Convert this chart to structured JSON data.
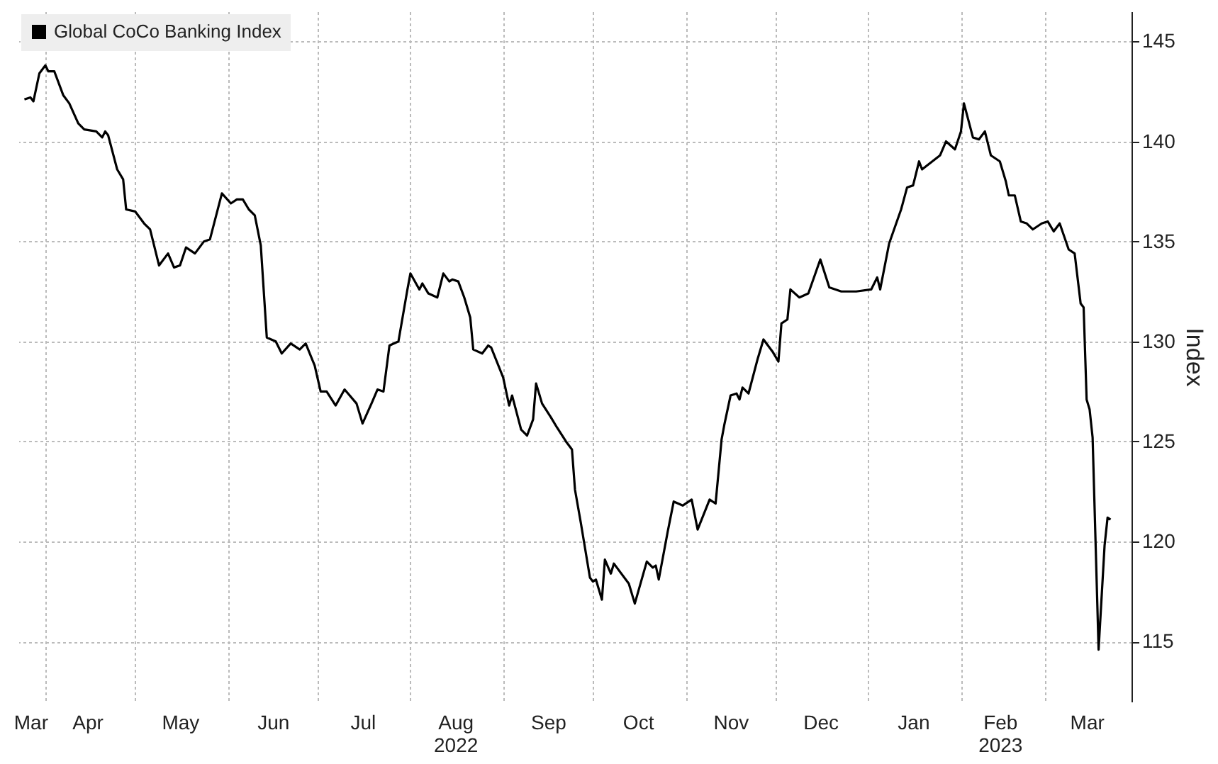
{
  "chart_data": {
    "type": "line",
    "ylabel": "Index",
    "x": [
      "2022-03-25",
      "2022-03-27",
      "2022-03-28",
      "2022-03-30",
      "2022-04-01",
      "2022-04-02",
      "2022-04-04",
      "2022-04-07",
      "2022-04-09",
      "2022-04-12",
      "2022-04-14",
      "2022-04-18",
      "2022-04-20",
      "2022-04-21",
      "2022-04-22",
      "2022-04-25",
      "2022-04-27",
      "2022-04-28",
      "2022-05-01",
      "2022-05-04",
      "2022-05-06",
      "2022-05-09",
      "2022-05-12",
      "2022-05-14",
      "2022-05-16",
      "2022-05-18",
      "2022-05-21",
      "2022-05-24",
      "2022-05-26",
      "2022-05-30",
      "2022-06-02",
      "2022-06-04",
      "2022-06-06",
      "2022-06-08",
      "2022-06-10",
      "2022-06-12",
      "2022-06-14",
      "2022-06-17",
      "2022-06-19",
      "2022-06-22",
      "2022-06-25",
      "2022-06-27",
      "2022-06-30",
      "2022-07-02",
      "2022-07-04",
      "2022-07-07",
      "2022-07-10",
      "2022-07-14",
      "2022-07-16",
      "2022-07-19",
      "2022-07-21",
      "2022-07-23",
      "2022-07-25",
      "2022-07-28",
      "2022-07-31",
      "2022-08-01",
      "2022-08-04",
      "2022-08-05",
      "2022-08-07",
      "2022-08-10",
      "2022-08-12",
      "2022-08-14",
      "2022-08-15",
      "2022-08-17",
      "2022-08-19",
      "2022-08-21",
      "2022-08-22",
      "2022-08-25",
      "2022-08-27",
      "2022-08-28",
      "2022-09-01",
      "2022-09-03",
      "2022-09-04",
      "2022-09-07",
      "2022-09-09",
      "2022-09-11",
      "2022-09-12",
      "2022-09-14",
      "2022-09-17",
      "2022-09-19",
      "2022-09-22",
      "2022-09-24",
      "2022-09-25",
      "2022-09-27",
      "2022-09-30",
      "2022-10-01",
      "2022-10-02",
      "2022-10-04",
      "2022-10-05",
      "2022-10-07",
      "2022-10-08",
      "2022-10-09",
      "2022-10-13",
      "2022-10-15",
      "2022-10-19",
      "2022-10-21",
      "2022-10-22",
      "2022-10-23",
      "2022-10-26",
      "2022-10-28",
      "2022-10-31",
      "2022-11-03",
      "2022-11-05",
      "2022-11-09",
      "2022-11-11",
      "2022-11-13",
      "2022-11-14",
      "2022-11-16",
      "2022-11-18",
      "2022-11-19",
      "2022-11-20",
      "2022-11-22",
      "2022-11-25",
      "2022-11-27",
      "2022-11-30",
      "2022-12-02",
      "2022-12-03",
      "2022-12-05",
      "2022-12-06",
      "2022-12-09",
      "2022-12-12",
      "2022-12-16",
      "2022-12-19",
      "2022-12-23",
      "2022-12-28",
      "2023-01-02",
      "2023-01-04",
      "2023-01-05",
      "2023-01-08",
      "2023-01-12",
      "2023-01-14",
      "2023-01-16",
      "2023-01-18",
      "2023-01-19",
      "2023-01-25",
      "2023-01-27",
      "2023-01-30",
      "2023-02-01",
      "2023-02-02",
      "2023-02-05",
      "2023-02-07",
      "2023-02-09",
      "2023-02-11",
      "2023-02-14",
      "2023-02-16",
      "2023-02-17",
      "2023-02-19",
      "2023-02-21",
      "2023-02-23",
      "2023-02-25",
      "2023-02-28",
      "2023-03-02",
      "2023-03-04",
      "2023-03-06",
      "2023-03-09",
      "2023-03-11",
      "2023-03-13",
      "2023-03-14",
      "2023-03-15",
      "2023-03-16",
      "2023-03-17",
      "2023-03-19",
      "2023-03-21",
      "2023-03-22",
      "2023-03-23"
    ],
    "series": [
      {
        "name": "Global CoCo Banking Index",
        "color": "#000000",
        "values": [
          142.1,
          142.2,
          142.0,
          143.4,
          143.8,
          143.5,
          143.5,
          142.3,
          141.9,
          140.9,
          140.6,
          140.5,
          140.2,
          140.5,
          140.3,
          138.6,
          138.1,
          136.6,
          136.5,
          135.9,
          135.6,
          133.8,
          134.4,
          133.7,
          133.8,
          134.7,
          134.4,
          135.0,
          135.1,
          137.4,
          136.9,
          137.1,
          137.1,
          136.6,
          136.3,
          134.8,
          130.2,
          130.0,
          129.4,
          129.9,
          129.6,
          129.9,
          128.8,
          127.5,
          127.5,
          126.8,
          127.6,
          126.9,
          125.9,
          126.9,
          127.6,
          127.5,
          129.8,
          130.0,
          132.6,
          133.4,
          132.6,
          132.9,
          132.4,
          132.2,
          133.4,
          133.0,
          133.1,
          133.0,
          132.2,
          131.2,
          129.6,
          129.4,
          129.8,
          129.7,
          128.2,
          126.8,
          127.3,
          125.6,
          125.3,
          126.1,
          127.9,
          126.9,
          126.2,
          125.7,
          125.0,
          124.6,
          122.6,
          120.9,
          118.2,
          118.0,
          118.1,
          117.1,
          119.1,
          118.4,
          118.9,
          118.7,
          117.9,
          116.9,
          119.0,
          118.7,
          118.8,
          118.1,
          120.5,
          122.0,
          121.8,
          122.1,
          120.6,
          122.1,
          121.9,
          125.1,
          125.9,
          127.3,
          127.4,
          127.1,
          127.7,
          127.4,
          129.1,
          130.1,
          129.5,
          129.0,
          130.9,
          131.1,
          132.6,
          132.2,
          132.4,
          134.1,
          132.7,
          132.5,
          132.5,
          132.6,
          133.2,
          132.6,
          134.9,
          136.6,
          137.7,
          137.8,
          139.0,
          138.6,
          139.3,
          140.0,
          139.6,
          140.5,
          141.9,
          140.2,
          140.1,
          140.5,
          139.3,
          139.0,
          138.0,
          137.3,
          137.3,
          136.0,
          135.9,
          135.6,
          135.9,
          136.0,
          135.5,
          135.9,
          134.6,
          134.4,
          131.9,
          131.7,
          127.1,
          126.6,
          125.2,
          114.6,
          119.8,
          121.2,
          121.1
        ]
      }
    ],
    "xlim": [
      "2022-03-23",
      "2023-03-30"
    ],
    "xticks": [
      {
        "value": "2022-03-27",
        "label": "Mar"
      },
      {
        "value": "2022-04-01",
        "label": null
      },
      {
        "value": "2022-04-15",
        "label": "Apr"
      },
      {
        "value": "2022-05-01",
        "label": null
      },
      {
        "value": "2022-05-16",
        "label": "May"
      },
      {
        "value": "2022-06-01",
        "label": null
      },
      {
        "value": "2022-06-16",
        "label": "Jun"
      },
      {
        "value": "2022-07-01",
        "label": null
      },
      {
        "value": "2022-07-16",
        "label": "Jul"
      },
      {
        "value": "2022-08-01",
        "label": null
      },
      {
        "value": "2022-08-16",
        "label": "Aug\n2022"
      },
      {
        "value": "2022-09-01",
        "label": null
      },
      {
        "value": "2022-09-16",
        "label": "Sep"
      },
      {
        "value": "2022-10-01",
        "label": null
      },
      {
        "value": "2022-10-16",
        "label": "Oct"
      },
      {
        "value": "2022-11-01",
        "label": null
      },
      {
        "value": "2022-11-16",
        "label": "Nov"
      },
      {
        "value": "2022-12-01",
        "label": null
      },
      {
        "value": "2022-12-16",
        "label": "Dec"
      },
      {
        "value": "2023-01-01",
        "label": null
      },
      {
        "value": "2023-01-16",
        "label": "Jan"
      },
      {
        "value": "2023-02-01",
        "label": null
      },
      {
        "value": "2023-02-14",
        "label": "Feb\n2023"
      },
      {
        "value": "2023-03-01",
        "label": null
      },
      {
        "value": "2023-03-15",
        "label": "Mar"
      }
    ],
    "ylim": [
      112,
      146.5
    ],
    "yticks": [
      115,
      120,
      125,
      130,
      135,
      140,
      145
    ],
    "grid": true,
    "legend": "top left",
    "line_style": "solid",
    "marker": "none"
  }
}
